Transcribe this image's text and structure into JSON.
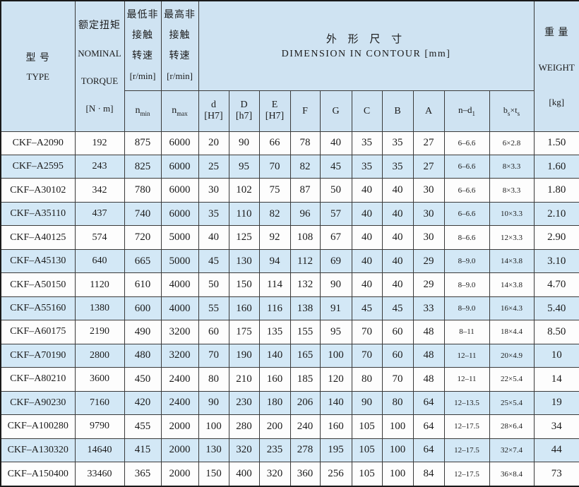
{
  "header": {
    "type": {
      "zh": "型 号",
      "en": "TYPE"
    },
    "torque": {
      "zh": "额定扭矩",
      "en1": "NOMINAL",
      "en2": "TORQUE",
      "unit": "[N · m]"
    },
    "nmin": {
      "zh1": "最低非",
      "zh2": "接触",
      "zh3": "转速",
      "unit": "[r/min]",
      "sym_base": "n",
      "sym_sub": "min"
    },
    "nmax": {
      "zh1": "最高非",
      "zh2": "接触",
      "zh3": "转速",
      "unit": "[r/min]",
      "sym_base": "n",
      "sym_sub": "max"
    },
    "dimension": {
      "zh": "外 形 尺 寸",
      "en": "DIMENSION IN CONTOUR [mm]"
    },
    "weight": {
      "zh": "重 量",
      "en": "WEIGHT",
      "unit": "[kg]"
    },
    "dims": {
      "d": {
        "l1": "d",
        "l2": "[H7]"
      },
      "D": {
        "l1": "D",
        "l2": "[h7]"
      },
      "E": {
        "l1": "E",
        "l2": "[H7]"
      },
      "F": "F",
      "G": "G",
      "C": "C",
      "B": "B",
      "A": "A"
    },
    "nd1": {
      "base": "n–d",
      "sub": "1"
    },
    "bt": {
      "b": "b",
      "bsub": "s",
      "times": "×",
      "t": "t",
      "tsub": "s"
    }
  },
  "column_keys": [
    "type",
    "torque",
    "nmin",
    "nmax",
    "d",
    "D",
    "E",
    "F",
    "G",
    "C",
    "B",
    "A",
    "nd1",
    "bt",
    "weight"
  ],
  "rows": [
    [
      "CKF–A2090",
      "192",
      "875",
      "6000",
      "20",
      "90",
      "66",
      "78",
      "40",
      "35",
      "35",
      "27",
      "6–6.6",
      "6×2.8",
      "1.50"
    ],
    [
      "CKF–A2595",
      "243",
      "825",
      "6000",
      "25",
      "95",
      "70",
      "82",
      "45",
      "35",
      "35",
      "27",
      "6–6.6",
      "8×3.3",
      "1.60"
    ],
    [
      "CKF–A30102",
      "342",
      "780",
      "6000",
      "30",
      "102",
      "75",
      "87",
      "50",
      "40",
      "40",
      "30",
      "6–6.6",
      "8×3.3",
      "1.80"
    ],
    [
      "CKF–A35110",
      "437",
      "740",
      "6000",
      "35",
      "110",
      "82",
      "96",
      "57",
      "40",
      "40",
      "30",
      "6–6.6",
      "10×3.3",
      "2.10"
    ],
    [
      "CKF–A40125",
      "574",
      "720",
      "5000",
      "40",
      "125",
      "92",
      "108",
      "67",
      "40",
      "40",
      "30",
      "8–6.6",
      "12×3.3",
      "2.90"
    ],
    [
      "CKF–A45130",
      "640",
      "665",
      "5000",
      "45",
      "130",
      "94",
      "112",
      "69",
      "40",
      "40",
      "29",
      "8–9.0",
      "14×3.8",
      "3.10"
    ],
    [
      "CKF–A50150",
      "1120",
      "610",
      "4000",
      "50",
      "150",
      "114",
      "132",
      "90",
      "40",
      "40",
      "29",
      "8–9.0",
      "14×3.8",
      "4.70"
    ],
    [
      "CKF–A55160",
      "1380",
      "600",
      "4000",
      "55",
      "160",
      "116",
      "138",
      "91",
      "45",
      "45",
      "33",
      "8–9.0",
      "16×4.3",
      "5.40"
    ],
    [
      "CKF–A60175",
      "2190",
      "490",
      "3200",
      "60",
      "175",
      "135",
      "155",
      "95",
      "70",
      "60",
      "48",
      "8–11",
      "18×4.4",
      "8.50"
    ],
    [
      "CKF–A70190",
      "2800",
      "480",
      "3200",
      "70",
      "190",
      "140",
      "165",
      "100",
      "70",
      "60",
      "48",
      "12–11",
      "20×4.9",
      "10"
    ],
    [
      "CKF–A80210",
      "3600",
      "450",
      "2400",
      "80",
      "210",
      "160",
      "185",
      "120",
      "80",
      "70",
      "48",
      "12–11",
      "22×5.4",
      "14"
    ],
    [
      "CKF–A90230",
      "7160",
      "420",
      "2400",
      "90",
      "230",
      "180",
      "206",
      "140",
      "90",
      "80",
      "64",
      "12–13.5",
      "25×5.4",
      "19"
    ],
    [
      "CKF–A100280",
      "9790",
      "455",
      "2000",
      "100",
      "280",
      "200",
      "240",
      "160",
      "105",
      "100",
      "64",
      "12–17.5",
      "28×6.4",
      "34"
    ],
    [
      "CKF–A130320",
      "14640",
      "415",
      "2000",
      "130",
      "320",
      "235",
      "278",
      "195",
      "105",
      "100",
      "64",
      "12–17.5",
      "32×7.4",
      "44"
    ],
    [
      "CKF–A150400",
      "33460",
      "365",
      "2000",
      "150",
      "400",
      "320",
      "360",
      "256",
      "105",
      "100",
      "84",
      "12–17.5",
      "36×8.4",
      "73"
    ]
  ],
  "colors": {
    "header_bg": "#cfe3f2",
    "alt_row_bg": "#d3e8f6",
    "row_bg": "#fdfdfd",
    "border": "#3a3a3a",
    "outer_border": "#1a1a1a",
    "text": "#1b1b1b"
  }
}
